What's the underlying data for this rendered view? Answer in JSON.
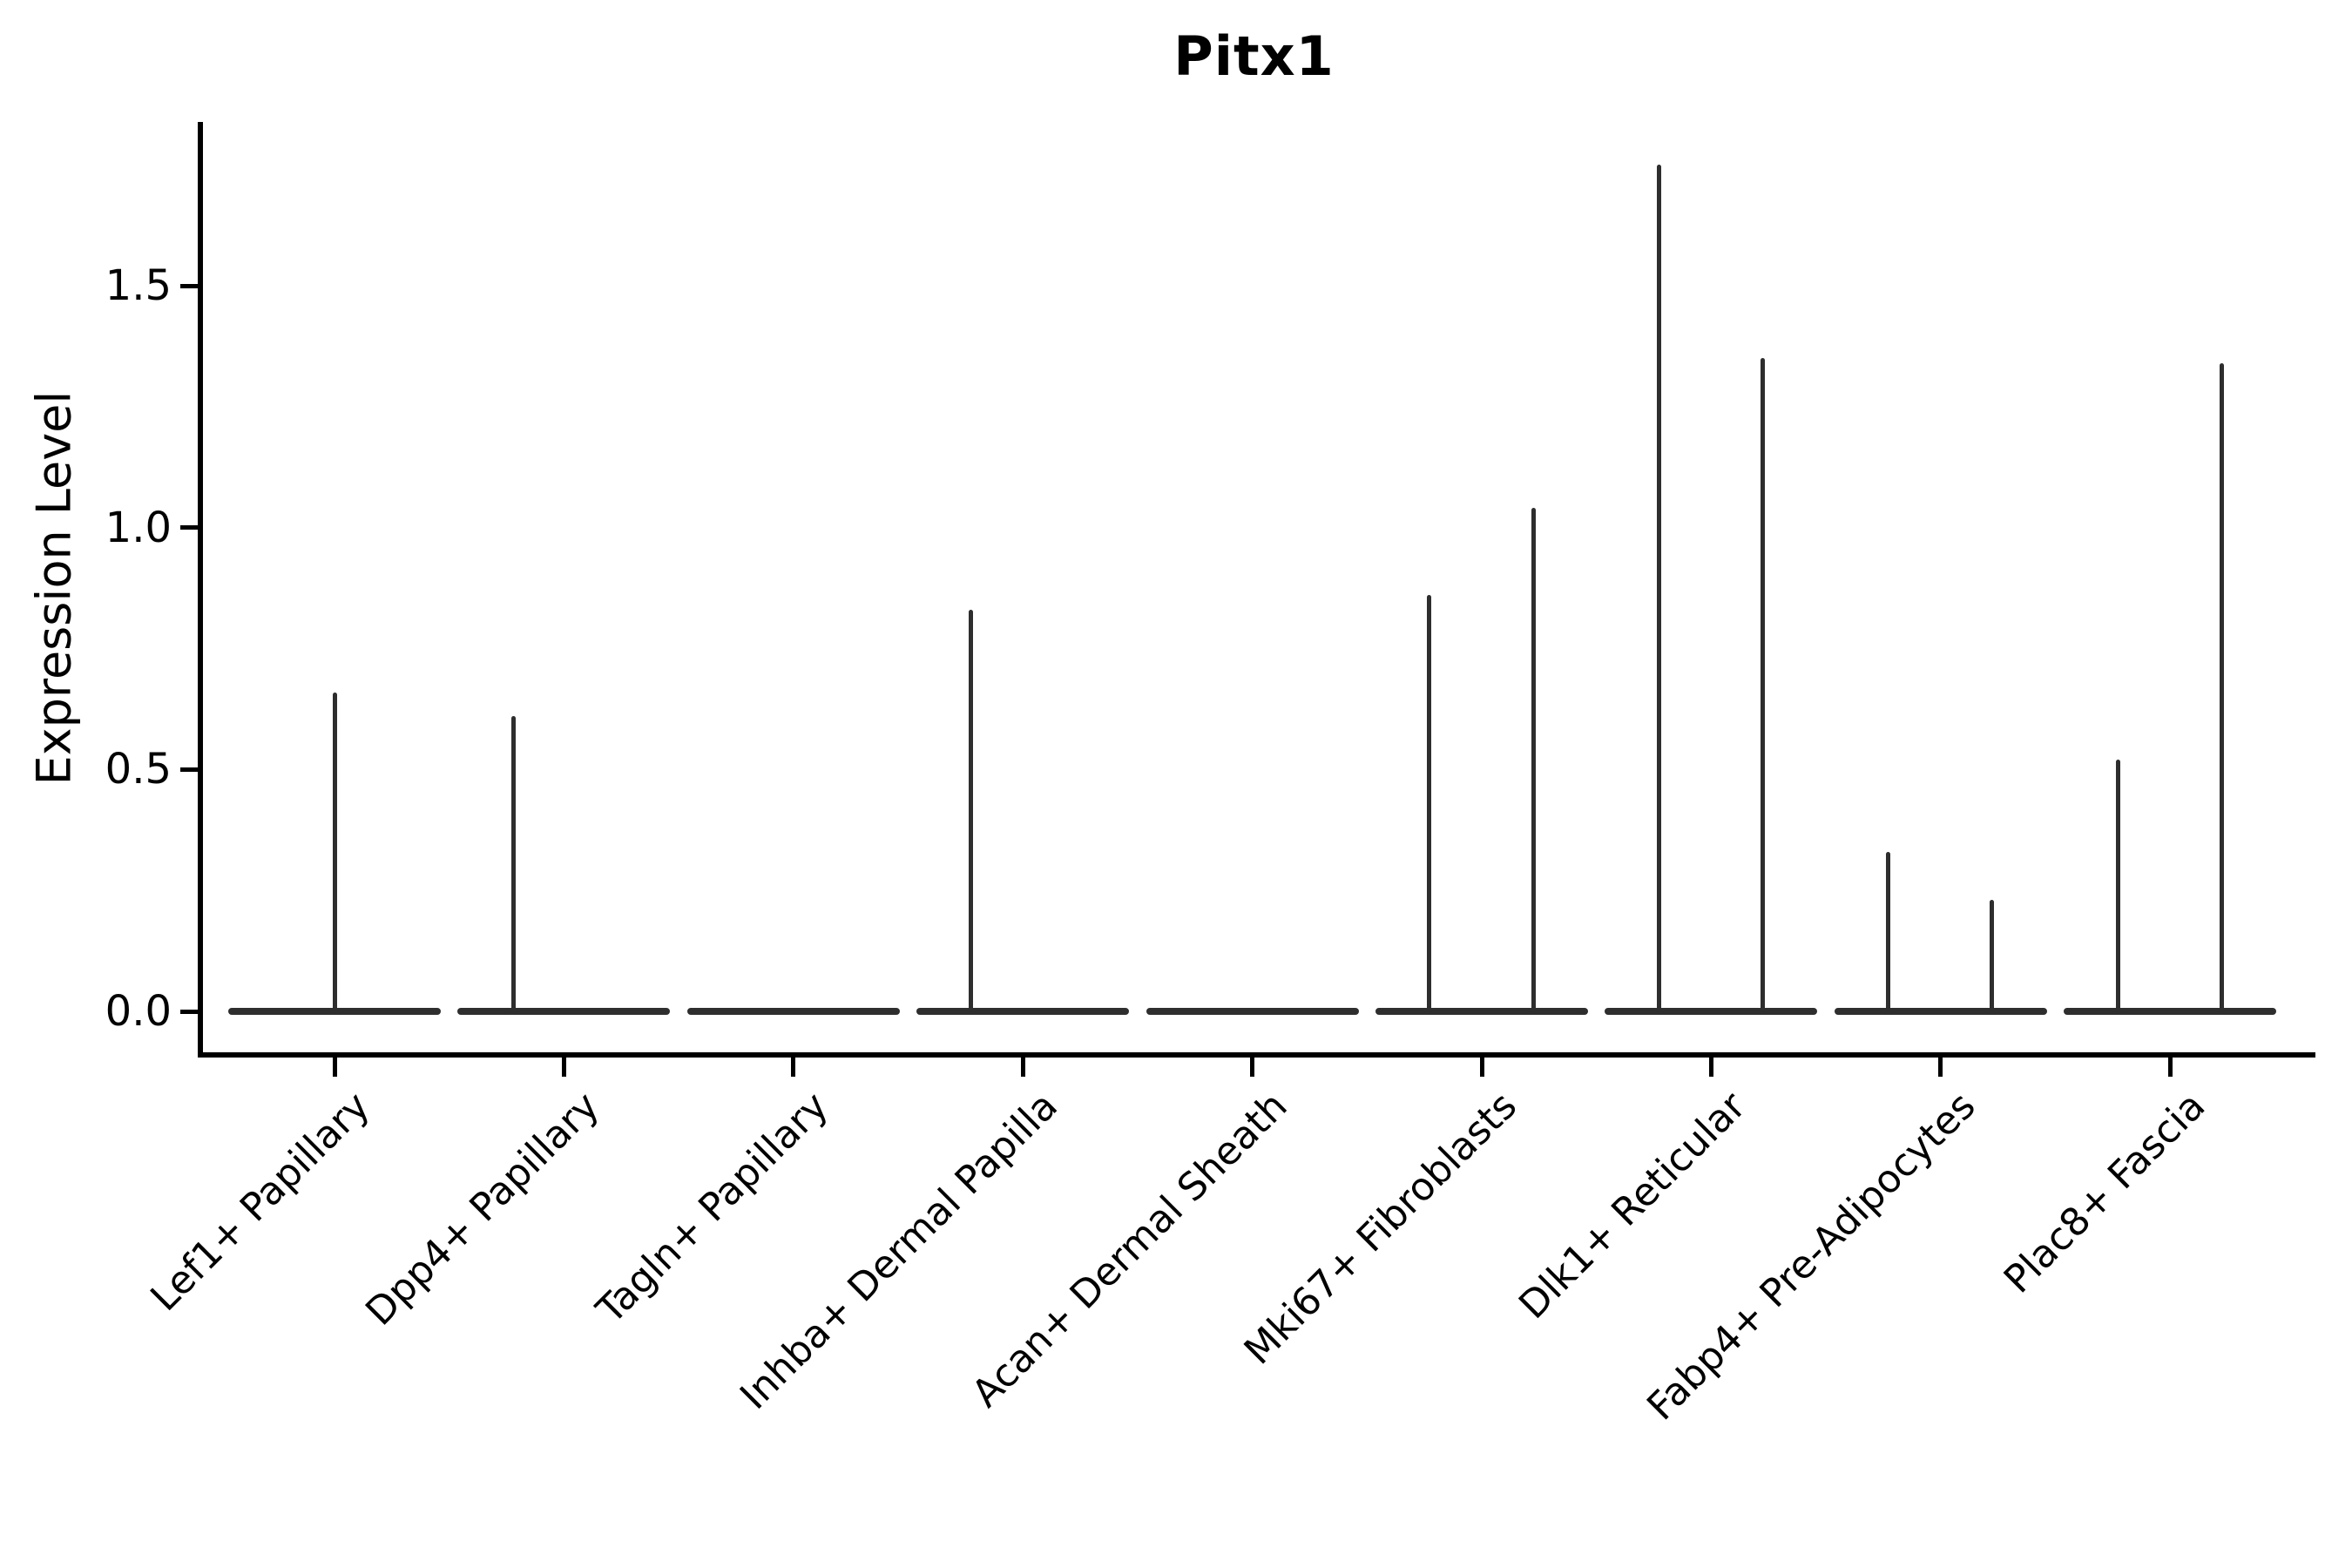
{
  "figure": {
    "title": "Pitx1",
    "background": "#ffffff"
  },
  "chart_data": {
    "type": "violin",
    "title": "Pitx1",
    "subtitle": "",
    "xlabel": "",
    "ylabel": "Expression Level",
    "grid": false,
    "legend": "none",
    "ylim": [
      -0.09,
      1.84
    ],
    "ytick_labels": [
      "0.0",
      "0.5",
      "1.0",
      "1.5"
    ],
    "ytick_values": [
      0.0,
      0.5,
      1.0,
      1.5
    ],
    "violin_color": "#2e2e2e",
    "axis_color": "#000000",
    "categories": [
      "Lef1+ Papillary",
      "Dpp4+ Papillary",
      "Tagln+ Papillary",
      "Inhba+ Dermal Papilla",
      "Acan+ Dermal Sheath",
      "Mki67+ Fibroblasts",
      "Dlk1+ Reticular",
      "Fabp4+ Pre-Adipocytes",
      "Plac8+ Fascia"
    ],
    "violins": [
      {
        "category": "Lef1+ Papillary",
        "base_at_zero": true,
        "spikes": [
          {
            "offset": 0.0,
            "max": 0.66
          }
        ]
      },
      {
        "category": "Dpp4+ Papillary",
        "base_at_zero": true,
        "spikes": [
          {
            "offset": -0.22,
            "max": 0.61
          }
        ]
      },
      {
        "category": "Tagln+ Papillary",
        "base_at_zero": true,
        "spikes": []
      },
      {
        "category": "Inhba+ Dermal Papilla",
        "base_at_zero": true,
        "spikes": [
          {
            "offset": -0.225,
            "max": 0.83
          }
        ]
      },
      {
        "category": "Acan+ Dermal Sheath",
        "base_at_zero": true,
        "spikes": []
      },
      {
        "category": "Mki67+ Fibroblasts",
        "base_at_zero": true,
        "spikes": [
          {
            "offset": -0.228,
            "max": 0.86
          },
          {
            "offset": 0.224,
            "max": 1.04
          }
        ]
      },
      {
        "category": "Dlk1+ Reticular",
        "base_at_zero": true,
        "spikes": [
          {
            "offset": -0.228,
            "max": 1.75
          },
          {
            "offset": 0.224,
            "max": 1.35
          }
        ]
      },
      {
        "category": "Fabp4+ Pre-Adipocytes",
        "base_at_zero": true,
        "spikes": [
          {
            "offset": -0.228,
            "max": 0.33
          },
          {
            "offset": 0.224,
            "max": 0.23
          }
        ]
      },
      {
        "category": "Plac8+ Fascia",
        "base_at_zero": true,
        "spikes": [
          {
            "offset": -0.228,
            "max": 0.52
          },
          {
            "offset": 0.224,
            "max": 1.34
          }
        ]
      }
    ]
  }
}
